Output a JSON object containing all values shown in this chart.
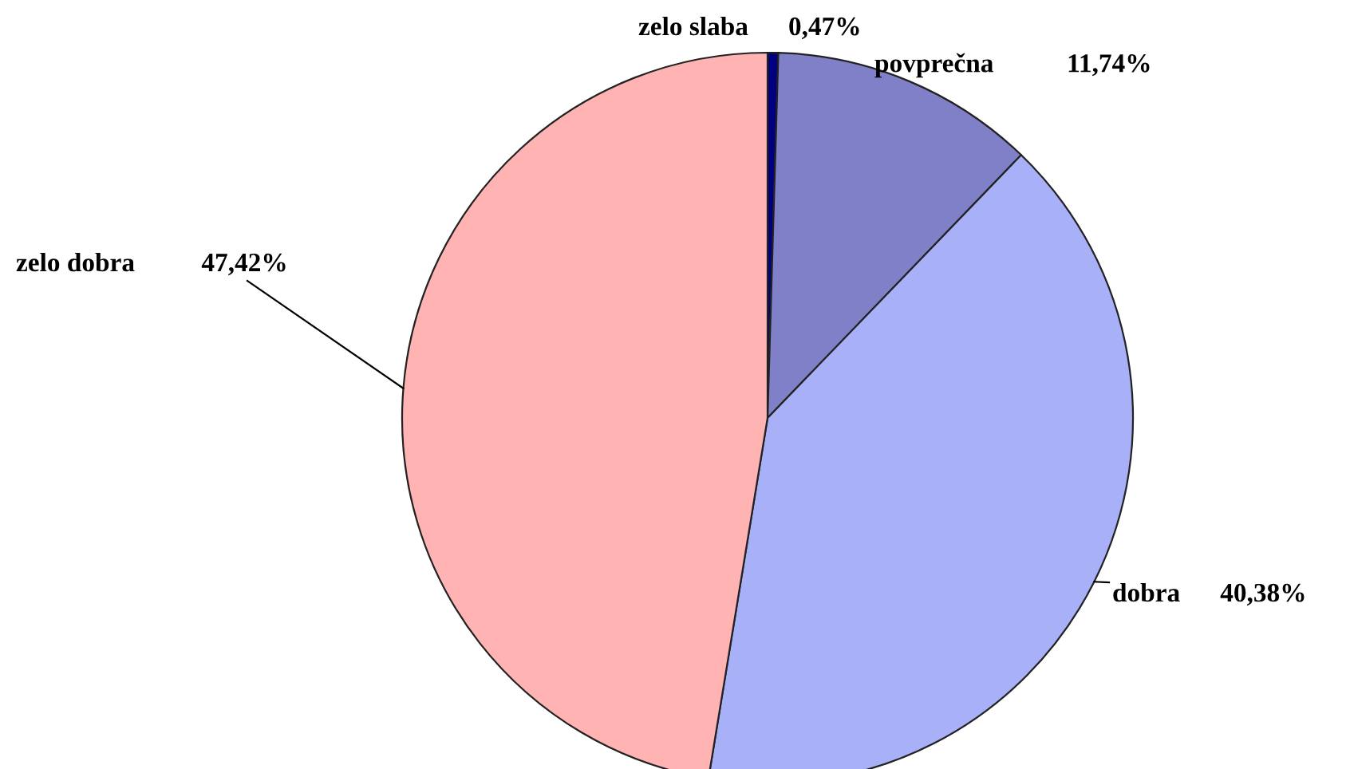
{
  "chart_data": {
    "type": "pie",
    "categories": [
      "zelo slaba",
      "povprečna",
      "dobra",
      "zelo dobra"
    ],
    "values": [
      0.47,
      11.74,
      40.38,
      47.42
    ],
    "value_labels": [
      "0,47%",
      "11,74%",
      "40,38%",
      "47,42%"
    ],
    "colors": [
      "#000080",
      "#8080c8",
      "#a8b0f8",
      "#ffb3b3"
    ],
    "legend": false
  }
}
